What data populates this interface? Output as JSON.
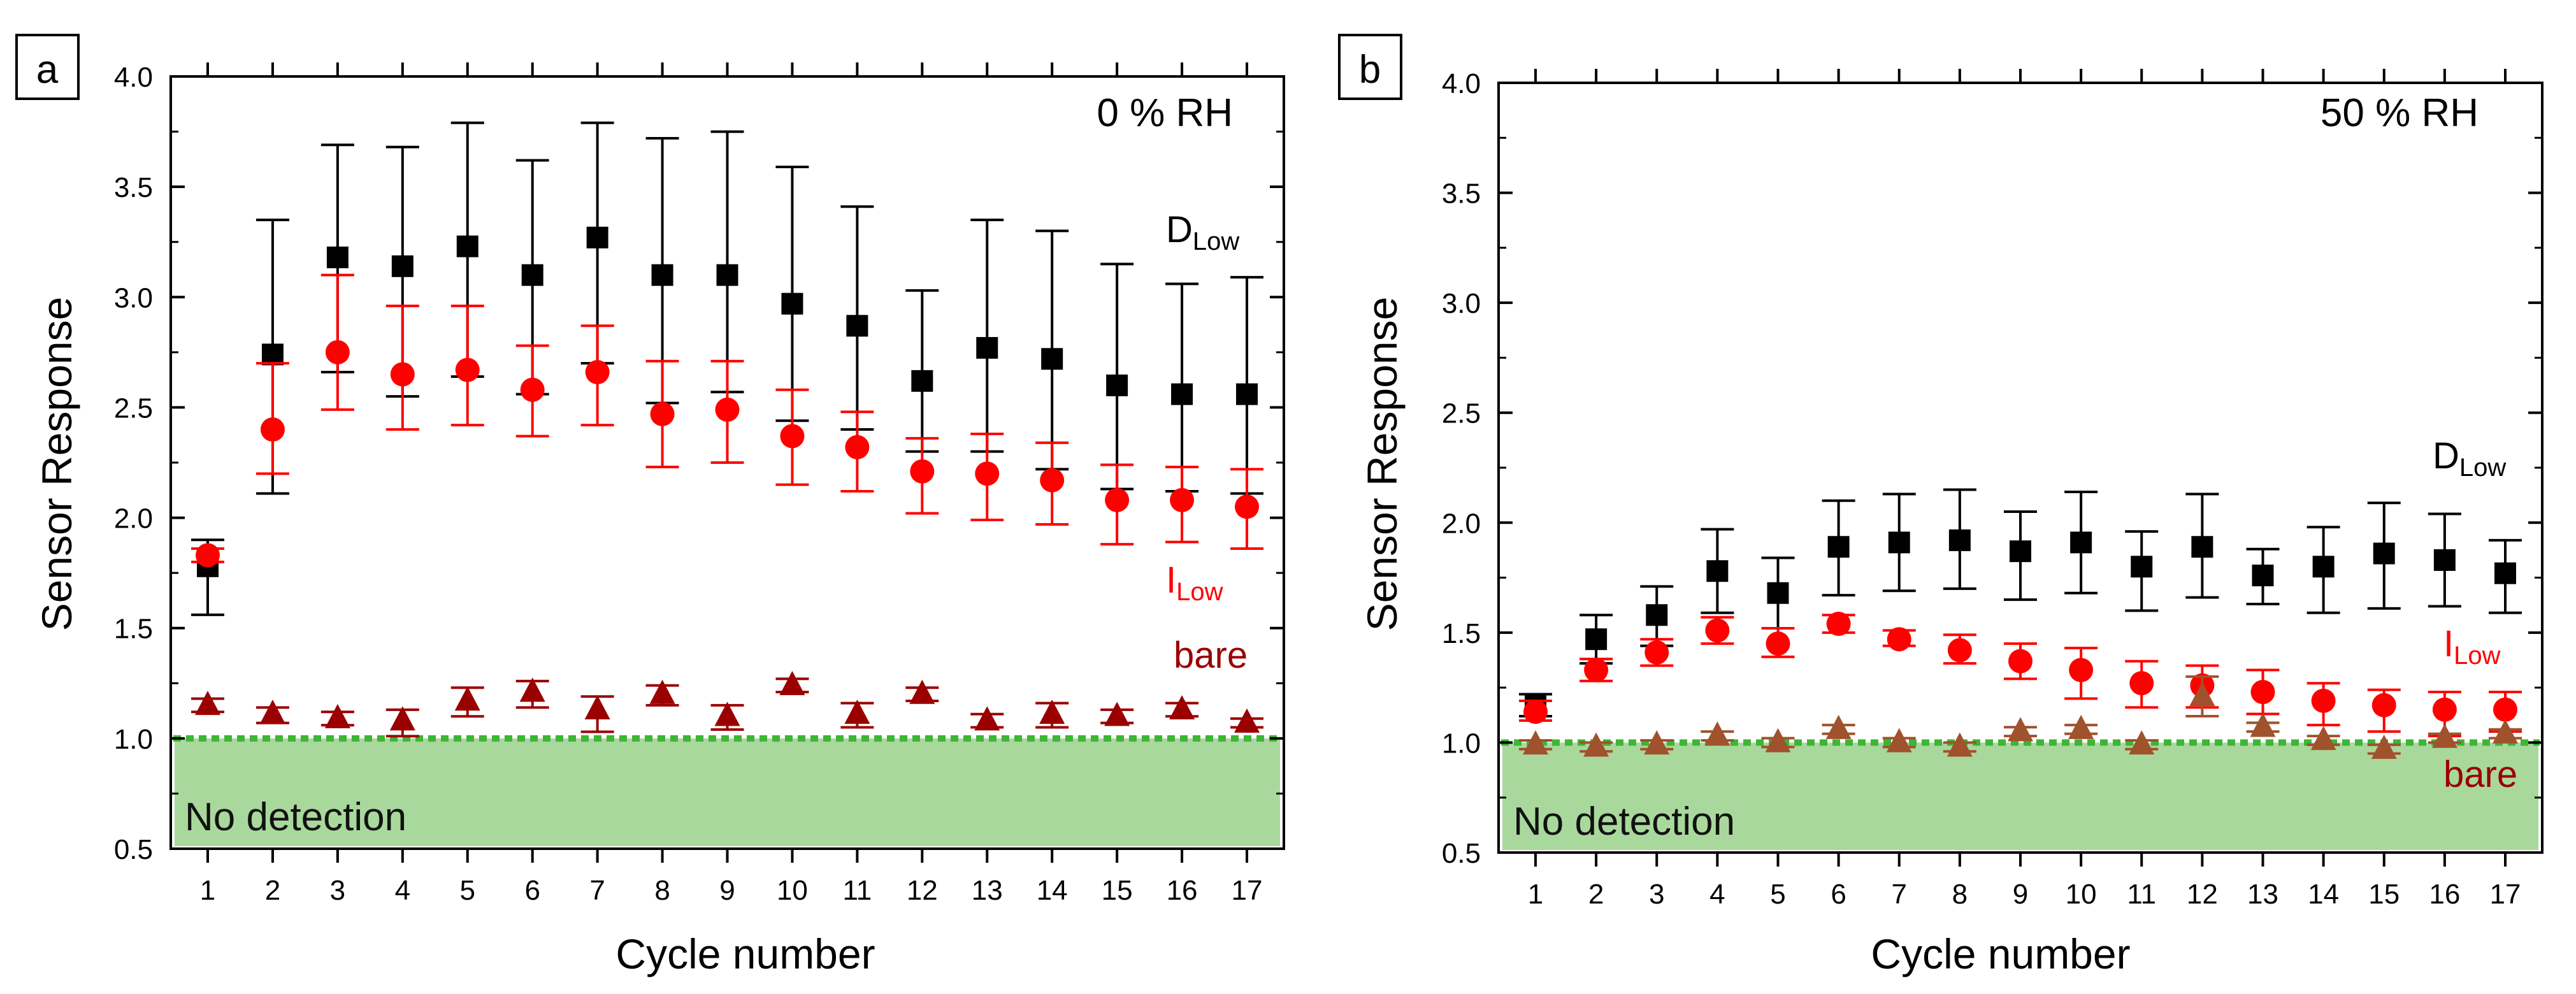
{
  "figure": {
    "panels": [
      {
        "label": "a",
        "condition": "0 % RH",
        "annotation": "No detection",
        "legend": {
          "d": "D",
          "d_sub": "Low",
          "i": "I",
          "i_sub": "Low",
          "bare": "bare"
        }
      },
      {
        "label": "b",
        "condition": "50 % RH",
        "annotation": "No detection",
        "legend": {
          "d": "D",
          "d_sub": "Low",
          "i": "I",
          "i_sub": "Low",
          "bare": "bare"
        }
      }
    ]
  },
  "colors": {
    "dlow": "#000000",
    "ilow": "#ff0000",
    "bare_a": "#9b0000",
    "bare_b": "#a0522d",
    "bare_label": "#9b0000",
    "no_detection_fill": "#a9d89c",
    "threshold_line": "#3db535"
  },
  "chart_data": [
    {
      "type": "scatter",
      "panel": "a",
      "title": "0 % RH",
      "xlabel": "Cycle number",
      "ylabel": "Sensor Response",
      "ylim": [
        0.5,
        4.0
      ],
      "yticks": [
        "0.5",
        "1.0",
        "1.5",
        "2.0",
        "2.5",
        "3.0",
        "3.5",
        "4.0"
      ],
      "x": [
        "1",
        "2",
        "3",
        "4",
        "5",
        "6",
        "7",
        "8",
        "9",
        "10",
        "11",
        "12",
        "13",
        "14",
        "15",
        "16",
        "17"
      ],
      "threshold": 1.0,
      "series": [
        {
          "name": "DLow",
          "marker": "square",
          "color": "#000000",
          "values": [
            1.78,
            2.74,
            3.18,
            3.14,
            3.23,
            3.1,
            3.27,
            3.1,
            3.1,
            2.97,
            2.87,
            2.62,
            2.77,
            2.72,
            2.6,
            2.56,
            2.56
          ],
          "err_low": [
            1.56,
            2.11,
            2.66,
            2.55,
            2.64,
            2.56,
            2.7,
            2.52,
            2.57,
            2.44,
            2.4,
            2.3,
            2.3,
            2.22,
            2.13,
            2.12,
            2.11
          ],
          "err_high": [
            1.9,
            3.35,
            3.69,
            3.68,
            3.79,
            3.62,
            3.79,
            3.72,
            3.75,
            3.59,
            3.41,
            3.03,
            3.35,
            3.3,
            3.15,
            3.06,
            3.09
          ]
        },
        {
          "name": "ILow",
          "marker": "circle",
          "color": "#ff0000",
          "values": [
            1.83,
            2.4,
            2.75,
            2.65,
            2.67,
            2.58,
            2.66,
            2.47,
            2.49,
            2.37,
            2.32,
            2.21,
            2.2,
            2.17,
            2.08,
            2.08,
            2.05
          ],
          "err_low": [
            1.8,
            2.2,
            2.49,
            2.4,
            2.42,
            2.37,
            2.42,
            2.23,
            2.25,
            2.15,
            2.12,
            2.02,
            1.99,
            1.97,
            1.88,
            1.89,
            1.86
          ],
          "err_high": [
            1.86,
            2.7,
            3.1,
            2.96,
            2.96,
            2.78,
            2.87,
            2.71,
            2.71,
            2.58,
            2.48,
            2.36,
            2.38,
            2.34,
            2.24,
            2.23,
            2.22
          ]
        },
        {
          "name": "bare",
          "marker": "triangle",
          "color": "#9b0000",
          "values": [
            1.15,
            1.11,
            1.09,
            1.08,
            1.17,
            1.21,
            1.13,
            1.2,
            1.1,
            1.24,
            1.11,
            1.2,
            1.08,
            1.11,
            1.1,
            1.13,
            1.07
          ],
          "err_low": [
            1.12,
            1.07,
            1.06,
            1.01,
            1.1,
            1.14,
            1.03,
            1.15,
            1.04,
            1.21,
            1.05,
            1.17,
            1.05,
            1.05,
            1.07,
            1.1,
            1.05
          ],
          "err_high": [
            1.18,
            1.14,
            1.12,
            1.13,
            1.23,
            1.26,
            1.19,
            1.24,
            1.15,
            1.27,
            1.16,
            1.23,
            1.11,
            1.16,
            1.13,
            1.16,
            1.09
          ]
        }
      ]
    },
    {
      "type": "scatter",
      "panel": "b",
      "title": "50 % RH",
      "xlabel": "Cycle number",
      "ylabel": "Sensor Response",
      "ylim": [
        0.5,
        4.0
      ],
      "yticks": [
        "0.5",
        "1.0",
        "1.5",
        "2.0",
        "2.5",
        "3.0",
        "3.5",
        "4.0"
      ],
      "x": [
        "1",
        "2",
        "3",
        "4",
        "5",
        "6",
        "7",
        "8",
        "9",
        "10",
        "11",
        "12",
        "13",
        "14",
        "15",
        "16",
        "17"
      ],
      "threshold": 1.0,
      "series": [
        {
          "name": "DLow",
          "marker": "square",
          "color": "#000000",
          "values": [
            1.17,
            1.47,
            1.58,
            1.78,
            1.68,
            1.89,
            1.91,
            1.92,
            1.87,
            1.91,
            1.8,
            1.89,
            1.76,
            1.8,
            1.86,
            1.83,
            1.77
          ],
          "err_low": [
            1.12,
            1.36,
            1.44,
            1.59,
            1.52,
            1.67,
            1.69,
            1.7,
            1.65,
            1.68,
            1.6,
            1.66,
            1.63,
            1.59,
            1.61,
            1.62,
            1.59
          ],
          "err_high": [
            1.22,
            1.58,
            1.71,
            1.97,
            1.84,
            2.1,
            2.13,
            2.15,
            2.05,
            2.14,
            1.96,
            2.13,
            1.88,
            1.98,
            2.09,
            2.04,
            1.92
          ]
        },
        {
          "name": "ILow",
          "marker": "circle",
          "color": "#ff0000",
          "values": [
            1.14,
            1.33,
            1.41,
            1.51,
            1.45,
            1.54,
            1.47,
            1.42,
            1.37,
            1.33,
            1.27,
            1.26,
            1.23,
            1.19,
            1.17,
            1.15,
            1.15
          ],
          "err_low": [
            1.1,
            1.28,
            1.35,
            1.45,
            1.39,
            1.5,
            1.44,
            1.36,
            1.29,
            1.2,
            1.16,
            1.16,
            1.13,
            1.08,
            1.05,
            1.03,
            1.05
          ],
          "err_high": [
            1.19,
            1.38,
            1.47,
            1.57,
            1.52,
            1.58,
            1.51,
            1.49,
            1.45,
            1.43,
            1.37,
            1.35,
            1.33,
            1.27,
            1.24,
            1.23,
            1.23
          ]
        },
        {
          "name": "bare",
          "marker": "triangle",
          "color": "#a0522d",
          "values": [
            0.99,
            0.98,
            0.99,
            1.03,
            1.0,
            1.06,
            1.0,
            0.98,
            1.05,
            1.06,
            0.99,
            1.21,
            1.07,
            1.01,
            0.97,
            1.02,
            1.04
          ],
          "err_low": [
            0.97,
            0.96,
            0.97,
            1.01,
            0.98,
            1.04,
            0.98,
            0.96,
            1.03,
            1.04,
            0.97,
            1.12,
            1.05,
            0.99,
            0.95,
            1.0,
            1.02
          ],
          "err_high": [
            1.01,
            1.0,
            1.01,
            1.05,
            1.02,
            1.08,
            1.02,
            1.0,
            1.07,
            1.08,
            1.01,
            1.3,
            1.09,
            1.03,
            0.99,
            1.04,
            1.06
          ]
        }
      ]
    }
  ]
}
